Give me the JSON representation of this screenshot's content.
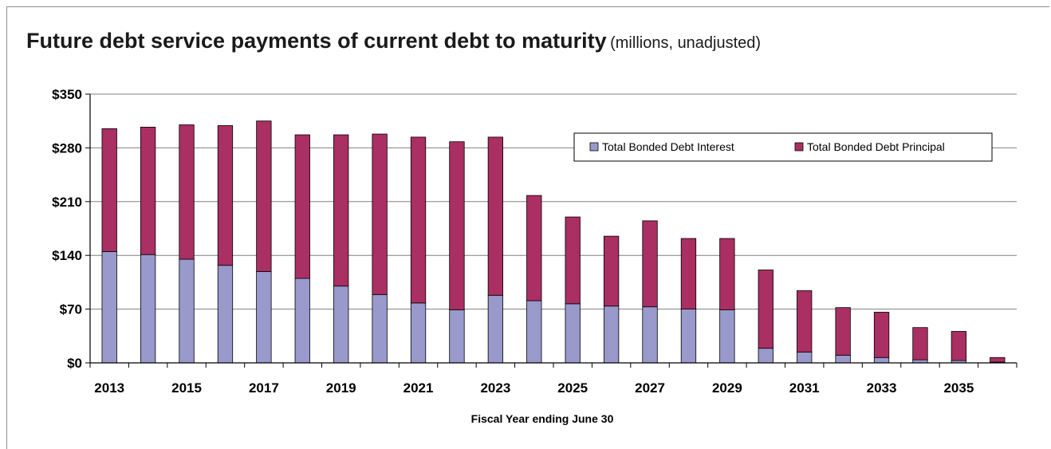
{
  "chart_data": {
    "type": "bar",
    "stacked": true,
    "title": "Future debt service payments of current debt to maturity",
    "subtitle": "(millions, unadjusted)",
    "xlabel": "Fiscal Year ending June 30",
    "ylabel": "",
    "ylim": [
      0,
      350
    ],
    "yticks": [
      0,
      70,
      140,
      210,
      280,
      350
    ],
    "ytick_labels": [
      "$0",
      "$70",
      "$140",
      "$210",
      "$280",
      "$350"
    ],
    "grid": true,
    "legend_position": "top-right",
    "categories": [
      2013,
      2014,
      2015,
      2016,
      2017,
      2018,
      2019,
      2020,
      2021,
      2022,
      2023,
      2024,
      2025,
      2026,
      2027,
      2028,
      2029,
      2030,
      2031,
      2032,
      2033,
      2034,
      2035,
      2036
    ],
    "xtick_labels": [
      "2013",
      "2015",
      "2017",
      "2019",
      "2021",
      "2023",
      "2025",
      "2027",
      "2029",
      "2031",
      "2033",
      "2035"
    ],
    "series": [
      {
        "name": "Total Bonded Debt Interest",
        "color": "#9999cc",
        "values": [
          145,
          141,
          135,
          127,
          119,
          110,
          100,
          89,
          78,
          69,
          88,
          81,
          77,
          74,
          73,
          70,
          69,
          19,
          14,
          10,
          7,
          4,
          3,
          1
        ]
      },
      {
        "name": "Total Bonded Debt Principal",
        "color": "#aa2f62",
        "values": [
          160,
          166,
          175,
          182,
          196,
          187,
          197,
          209,
          216,
          219,
          206,
          137,
          113,
          91,
          112,
          92,
          93,
          102,
          80,
          62,
          59,
          42,
          38,
          6
        ]
      }
    ]
  }
}
